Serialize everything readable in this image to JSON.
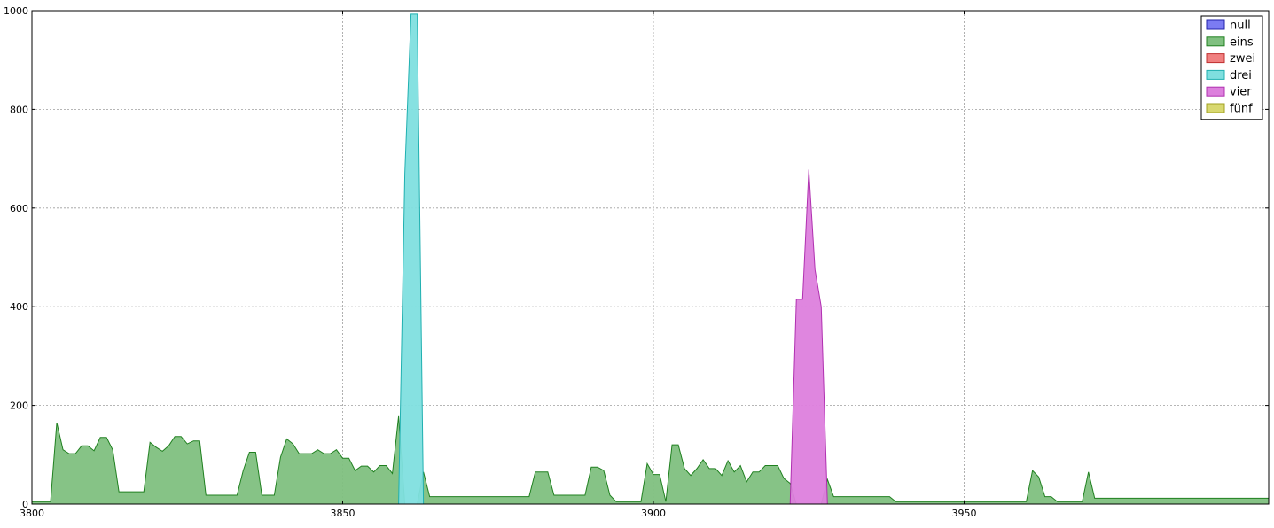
{
  "chart_data": {
    "type": "area",
    "xlim": [
      3800,
      3999
    ],
    "ylim": [
      0,
      1000
    ],
    "x_ticks": [
      3800,
      3850,
      3900,
      3950
    ],
    "y_ticks": [
      0,
      200,
      400,
      600,
      800,
      1000
    ],
    "grid": true,
    "legend_position": "top-right",
    "series": [
      {
        "name": "null",
        "color": "#7b7bf2",
        "stroke": "#2222aa",
        "points": []
      },
      {
        "name": "eins",
        "color": "#80c080",
        "stroke": "#208020",
        "points": [
          [
            3800,
            5
          ],
          [
            3803,
            5
          ],
          [
            3804,
            165
          ],
          [
            3805,
            110
          ],
          [
            3806,
            102
          ],
          [
            3807,
            102
          ],
          [
            3808,
            118
          ],
          [
            3809,
            118
          ],
          [
            3810,
            108
          ],
          [
            3811,
            135
          ],
          [
            3812,
            135
          ],
          [
            3813,
            110
          ],
          [
            3814,
            25
          ],
          [
            3818,
            25
          ],
          [
            3819,
            125
          ],
          [
            3820,
            115
          ],
          [
            3821,
            107
          ],
          [
            3822,
            118
          ],
          [
            3823,
            137
          ],
          [
            3824,
            137
          ],
          [
            3825,
            122
          ],
          [
            3826,
            128
          ],
          [
            3827,
            128
          ],
          [
            3828,
            18
          ],
          [
            3833,
            18
          ],
          [
            3834,
            68
          ],
          [
            3835,
            105
          ],
          [
            3836,
            105
          ],
          [
            3837,
            18
          ],
          [
            3839,
            18
          ],
          [
            3840,
            95
          ],
          [
            3841,
            132
          ],
          [
            3842,
            122
          ],
          [
            3843,
            102
          ],
          [
            3845,
            102
          ],
          [
            3846,
            110
          ],
          [
            3847,
            102
          ],
          [
            3848,
            102
          ],
          [
            3849,
            110
          ],
          [
            3850,
            93
          ],
          [
            3851,
            93
          ],
          [
            3852,
            68
          ],
          [
            3853,
            77
          ],
          [
            3854,
            77
          ],
          [
            3855,
            65
          ],
          [
            3856,
            78
          ],
          [
            3857,
            78
          ],
          [
            3858,
            62
          ],
          [
            3859,
            178
          ],
          [
            3860,
            0
          ],
          [
            3862,
            0
          ],
          [
            3863,
            65
          ],
          [
            3864,
            15
          ],
          [
            3880,
            15
          ],
          [
            3881,
            65
          ],
          [
            3883,
            65
          ],
          [
            3884,
            18
          ],
          [
            3889,
            18
          ],
          [
            3890,
            75
          ],
          [
            3891,
            75
          ],
          [
            3892,
            68
          ],
          [
            3893,
            18
          ],
          [
            3894,
            5
          ],
          [
            3898,
            5
          ],
          [
            3899,
            82
          ],
          [
            3900,
            60
          ],
          [
            3901,
            60
          ],
          [
            3902,
            5
          ],
          [
            3903,
            120
          ],
          [
            3904,
            120
          ],
          [
            3905,
            72
          ],
          [
            3906,
            58
          ],
          [
            3907,
            72
          ],
          [
            3908,
            90
          ],
          [
            3909,
            72
          ],
          [
            3910,
            72
          ],
          [
            3911,
            58
          ],
          [
            3912,
            88
          ],
          [
            3913,
            65
          ],
          [
            3914,
            78
          ],
          [
            3915,
            45
          ],
          [
            3916,
            65
          ],
          [
            3917,
            65
          ],
          [
            3918,
            78
          ],
          [
            3920,
            78
          ],
          [
            3921,
            52
          ],
          [
            3922,
            42
          ],
          [
            3923,
            0
          ],
          [
            3927,
            0
          ],
          [
            3928,
            50
          ],
          [
            3929,
            15
          ],
          [
            3938,
            15
          ],
          [
            3939,
            5
          ],
          [
            3960,
            5
          ],
          [
            3961,
            68
          ],
          [
            3962,
            55
          ],
          [
            3963,
            15
          ],
          [
            3964,
            15
          ],
          [
            3965,
            5
          ],
          [
            3969,
            5
          ],
          [
            3970,
            65
          ],
          [
            3971,
            12
          ],
          [
            3999,
            12
          ]
        ]
      },
      {
        "name": "zwei",
        "color": "#f08080",
        "stroke": "#c03030",
        "points": []
      },
      {
        "name": "drei",
        "color": "#7fdfdf",
        "stroke": "#20b0b0",
        "points": [
          [
            3859,
            0
          ],
          [
            3860,
            670
          ],
          [
            3861,
            993
          ],
          [
            3862,
            993
          ],
          [
            3863,
            0
          ]
        ]
      },
      {
        "name": "vier",
        "color": "#dd80dd",
        "stroke": "#b030b0",
        "points": [
          [
            3922,
            0
          ],
          [
            3923,
            415
          ],
          [
            3924,
            415
          ],
          [
            3925,
            678
          ],
          [
            3926,
            475
          ],
          [
            3927,
            400
          ],
          [
            3928,
            0
          ]
        ]
      },
      {
        "name": "fünf",
        "color": "#d8d870",
        "stroke": "#a0a020",
        "points": []
      }
    ]
  }
}
